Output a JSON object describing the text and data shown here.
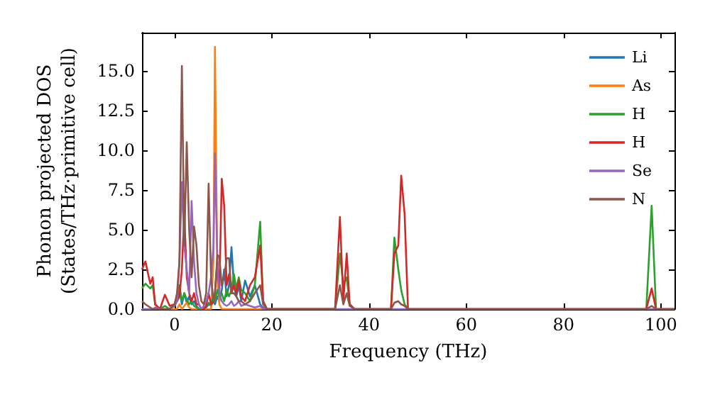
{
  "chart_data": {
    "type": "line",
    "xlabel": "Frequency (THz)",
    "ylabel": "Phonon projected DOS\n(States/THz·primitive cell)",
    "x": [
      -6.7,
      -6,
      -5,
      -4.5,
      -4,
      -3,
      -2,
      -1,
      0,
      0.5,
      1,
      1.5,
      2,
      2.5,
      3,
      3.5,
      4,
      4.5,
      5,
      5.5,
      6,
      6.5,
      7,
      7.5,
      8,
      8.3,
      8.8,
      9.2,
      9.7,
      10.2,
      10.7,
      11.2,
      11.7,
      12.2,
      12.7,
      13.2,
      13.7,
      14.5,
      15.5,
      16.5,
      17.6,
      18.2,
      19,
      33,
      34,
      34.7,
      35.4,
      36,
      37,
      44.5,
      45.2,
      46,
      46.6,
      47.3,
      48,
      97,
      98.1,
      99,
      102.8
    ],
    "series": [
      {
        "name": "Li",
        "color": "#1f77b4",
        "values": [
          null,
          null,
          null,
          null,
          null,
          null,
          null,
          0,
          0.2,
          0.5,
          1.2,
          0.3,
          1,
          0.4,
          0.8,
          0.3,
          0.5,
          0.2,
          0,
          0,
          0,
          0.1,
          0.3,
          0.2,
          0.5,
          0.3,
          0.8,
          0.5,
          1.2,
          2.5,
          0.8,
          1.5,
          3.9,
          1.5,
          0.8,
          1.5,
          0.5,
          1.8,
          0.8,
          1.5,
          0.3,
          0.1,
          0,
          0,
          null,
          null,
          null,
          null,
          null,
          null,
          null,
          null,
          null,
          null,
          null,
          null,
          null,
          null,
          null
        ]
      },
      {
        "name": "As",
        "color": "#ff7f0e",
        "values": [
          null,
          null,
          null,
          null,
          null,
          0,
          0,
          0,
          0,
          0,
          0.3,
          0,
          0.2,
          0.4,
          0.1,
          0,
          0,
          0,
          0,
          0,
          0,
          0,
          0,
          0,
          3,
          16.5,
          2,
          0.3,
          0,
          0,
          0,
          0,
          0,
          0,
          0,
          0,
          0,
          0,
          0,
          0,
          0,
          0,
          0,
          0,
          null,
          null,
          null,
          null,
          null,
          null,
          null,
          null,
          null,
          null,
          null,
          null,
          null,
          null,
          null
        ]
      },
      {
        "name": "H",
        "color": "#2ca02c",
        "values": [
          1.3,
          1.6,
          1.3,
          1.5,
          0.3,
          0,
          0.2,
          0,
          0.3,
          0.8,
          1.5,
          0.5,
          1,
          0.6,
          0.3,
          0.5,
          0.2,
          0.1,
          0,
          0,
          0,
          0.2,
          0.4,
          0.3,
          0.8,
          0.5,
          1.2,
          0.8,
          1,
          0.5,
          1.2,
          0.8,
          1.2,
          2.2,
          1.3,
          2,
          1.2,
          1,
          0.5,
          1.5,
          5.5,
          0.5,
          0,
          0,
          3.5,
          1.5,
          2,
          0.3,
          0,
          0,
          4.5,
          2.5,
          1.2,
          0.3,
          0,
          0,
          6.5,
          0,
          0
        ]
      },
      {
        "name": "H",
        "color": "#d62728",
        "values": [
          2.5,
          3,
          1.6,
          2,
          0.3,
          0,
          0.9,
          0.2,
          0.3,
          0.5,
          0.8,
          2.5,
          6,
          2,
          1,
          0.5,
          1,
          0.3,
          0.3,
          0,
          0,
          0.2,
          1,
          0.3,
          0.5,
          1,
          3,
          1,
          8.2,
          6.5,
          1.5,
          2.2,
          1,
          1.5,
          1,
          1.8,
          0.8,
          0.5,
          1.5,
          2,
          4,
          0.5,
          0,
          0,
          5.8,
          0.5,
          3.5,
          0.3,
          0,
          0,
          3.5,
          4,
          8.4,
          6,
          0,
          0,
          1.3,
          0,
          0
        ]
      },
      {
        "name": "Se",
        "color": "#9467bd",
        "values": [
          0,
          0,
          0,
          0,
          0.1,
          0,
          0,
          0,
          0.2,
          0.5,
          3,
          8,
          4,
          2.5,
          1,
          6.8,
          3,
          1,
          0.3,
          0,
          0.2,
          0.5,
          1,
          2,
          4,
          9.8,
          3,
          1,
          0.5,
          0.3,
          0.2,
          0.3,
          0.5,
          0.2,
          0.3,
          0.5,
          0.2,
          0.3,
          0.2,
          0.1,
          0.2,
          0,
          0,
          0,
          0,
          0,
          0,
          0,
          0,
          0,
          0,
          0,
          0,
          0,
          0,
          0,
          0,
          0,
          0
        ]
      },
      {
        "name": "N",
        "color": "#8c564b",
        "values": [
          0.5,
          0.3,
          0.1,
          0,
          0,
          0,
          0,
          0,
          0.3,
          1,
          3,
          15.3,
          4,
          10.5,
          5,
          2,
          5.2,
          4,
          1.5,
          0.5,
          0.3,
          1,
          7.9,
          2,
          0.5,
          1,
          3.4,
          3.3,
          1.5,
          2,
          3.2,
          3.2,
          1,
          1,
          0.8,
          0.5,
          0.5,
          0.3,
          0.5,
          1,
          1.5,
          0.3,
          0,
          0,
          1.5,
          0.3,
          1,
          0.2,
          0,
          0,
          0.4,
          0.5,
          0.3,
          0.2,
          0,
          0,
          0.2,
          0,
          0
        ]
      }
    ],
    "xlim": [
      -6.7,
      102.8
    ],
    "ylim": [
      0,
      17.4
    ],
    "xticks": [
      0,
      20,
      40,
      60,
      80,
      100
    ],
    "yticks": [
      {
        "value": 0,
        "label": "0.0"
      },
      {
        "value": 2.5,
        "label": "2.5"
      },
      {
        "value": 5,
        "label": "5.0"
      },
      {
        "value": 7.5,
        "label": "7.5"
      },
      {
        "value": 10,
        "label": "10.0"
      },
      {
        "value": 12.5,
        "label": "12.5"
      },
      {
        "value": 15,
        "label": "15.0"
      }
    ],
    "legend": "top right",
    "grid": false,
    "marker": "none",
    "line_style": "solid"
  }
}
